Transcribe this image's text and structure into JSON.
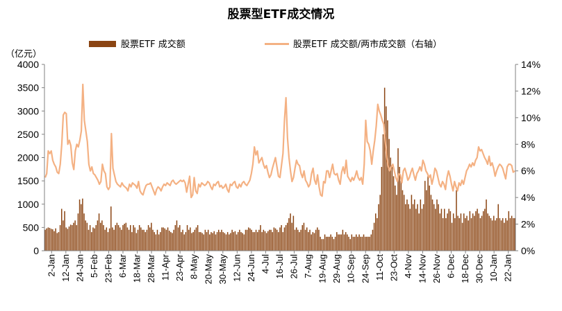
{
  "chart_data": {
    "type": "bar+line",
    "title": "股票型ETF成交情况",
    "y_left_unit": "（亿元）",
    "y_left_ticks": [
      "0",
      "500",
      "1000",
      "1500",
      "2000",
      "2500",
      "3000",
      "3500",
      "4000"
    ],
    "y_left_range": [
      0,
      4000
    ],
    "y_right_ticks": [
      "0%",
      "2%",
      "4%",
      "6%",
      "8%",
      "10%",
      "12%",
      "14%"
    ],
    "y_right_range": [
      0,
      14
    ],
    "x_tick_labels": [
      "2-Jan",
      "12-Jan",
      "24-Jan",
      "5-Feb",
      "23-Feb",
      "6-Mar",
      "18-Mar",
      "28-Mar",
      "11-Apr",
      "23-Apr",
      "8-May",
      "20-May",
      "30-May",
      "12-Jun",
      "24-Jun",
      "4-Jul",
      "16-Jul",
      "26-Jul",
      "7-Aug",
      "19-Aug",
      "29-Aug",
      "10-Sep",
      "24-Sep",
      "11-Oct",
      "23-Oct",
      "4-Nov",
      "14-Nov",
      "26-Nov",
      "6-Dec",
      "18-Dec",
      "30-Dec",
      "10-Jan",
      "22-Jan"
    ],
    "legend": {
      "placement": "top"
    },
    "colors": {
      "bar": "#8B4513",
      "line": "#F4B183",
      "axis": "#808080"
    },
    "series": [
      {
        "name": "股票ETF 成交额",
        "kind": "bar",
        "axis": "left",
        "values": [
          450,
          480,
          500,
          490,
          470,
          460,
          420,
          480,
          380,
          400,
          550,
          900,
          650,
          850,
          500,
          470,
          520,
          560,
          550,
          600,
          650,
          550,
          800,
          1100,
          1000,
          1120,
          800,
          650,
          600,
          450,
          550,
          400,
          500,
          480,
          550,
          650,
          800,
          600,
          650,
          550,
          450,
          500,
          400,
          480,
          950,
          500,
          450,
          550,
          600,
          550,
          500,
          450,
          550,
          580,
          600,
          500,
          450,
          550,
          400,
          550,
          500,
          380,
          450,
          550,
          500,
          450,
          450,
          400,
          450,
          550,
          500,
          600,
          450,
          400,
          350,
          450,
          350,
          400,
          500,
          500,
          480,
          450,
          500,
          430,
          400,
          380,
          450,
          550,
          650,
          500,
          550,
          400,
          450,
          350,
          400,
          550,
          450,
          500,
          380,
          400,
          450,
          500,
          550,
          400,
          400,
          380,
          350,
          450,
          400,
          450,
          350,
          400,
          380,
          420,
          350,
          400,
          450,
          400,
          450,
          400,
          380,
          350,
          400,
          350,
          380,
          450,
          400,
          420,
          350,
          400,
          450,
          400,
          380,
          350,
          450,
          450,
          500,
          480,
          450,
          400,
          400,
          450,
          400,
          450,
          550,
          400,
          450,
          420,
          380,
          420,
          450,
          450,
          400,
          500,
          480,
          450,
          400,
          500,
          550,
          400,
          500,
          550,
          600,
          700,
          800,
          600,
          750,
          450,
          500,
          450,
          400,
          450,
          550,
          600,
          450,
          500,
          400,
          450,
          350,
          400,
          380,
          450,
          500,
          450,
          300,
          250,
          250,
          350,
          300,
          300,
          300,
          350,
          300,
          250,
          300,
          400,
          350,
          350,
          350,
          450,
          350,
          400,
          350,
          300,
          250,
          350,
          300,
          300,
          350,
          300,
          350,
          300,
          300,
          350,
          300,
          300,
          300,
          300,
          350,
          450,
          600,
          800,
          700,
          1000,
          1200,
          1800,
          2500,
          3500,
          3100,
          2800,
          2400,
          2000,
          1800,
          1600,
          1400,
          1200,
          2200,
          1800,
          1500,
          1300,
          1200,
          1000,
          1100,
          1000,
          900,
          1200,
          1000,
          1100,
          900,
          1000,
          800,
          1100,
          900,
          1000,
          1500,
          1300,
          1600,
          1400,
          1200,
          1100,
          1000,
          900,
          1100,
          1000,
          800,
          900,
          700,
          900,
          700,
          800,
          900,
          850,
          600,
          800,
          700,
          1300,
          750,
          700,
          800,
          600,
          800,
          700,
          750,
          650,
          850,
          700,
          800,
          750,
          850,
          900,
          800,
          700,
          750,
          850,
          900,
          1100,
          800,
          750,
          700,
          650,
          750,
          650,
          700,
          1000,
          700,
          650,
          700,
          600,
          700,
          650,
          850,
          700,
          750,
          700,
          700
        ]
      },
      {
        "name": "股票ETF 成交额/两市成交额（右轴）",
        "kind": "line",
        "axis": "right",
        "values": [
          5.5,
          5.8,
          7.5,
          7.3,
          7.5,
          6.8,
          6.5,
          6.3,
          5.9,
          5.8,
          6.5,
          8.0,
          10.2,
          10.4,
          10.3,
          8.0,
          8.3,
          7.9,
          6.6,
          6.1,
          7.5,
          8.0,
          7.8,
          8.3,
          9.0,
          12.5,
          9.8,
          9.0,
          8.2,
          6.5,
          6.0,
          6.3,
          5.8,
          5.7,
          5.5,
          5.3,
          5.0,
          5.2,
          6.5,
          6.0,
          5.8,
          4.8,
          4.6,
          4.8,
          8.8,
          6.2,
          5.7,
          5.2,
          5.0,
          4.9,
          4.8,
          5.1,
          4.9,
          4.8,
          4.7,
          4.5,
          5.0,
          4.8,
          5.1,
          5.0,
          4.9,
          4.7,
          5.2,
          4.5,
          4.3,
          4.2,
          4.6,
          4.9,
          5.0,
          5.0,
          5.1,
          4.8,
          4.5,
          4.2,
          4.6,
          4.8,
          4.7,
          4.5,
          4.8,
          5.0,
          4.9,
          5.1,
          5.0,
          4.9,
          5.2,
          5.3,
          5.1,
          5.0,
          5.1,
          5.2,
          5.3,
          5.2,
          5.3,
          5.1,
          4.4,
          5.0,
          5.6,
          4.0,
          4.2,
          5.5,
          4.5,
          4.3,
          5.0,
          4.8,
          5.1,
          5.0,
          4.9,
          5.0,
          5.2,
          5.1,
          4.8,
          4.6,
          5.0,
          4.9,
          5.1,
          5.2,
          4.8,
          4.9,
          4.7,
          4.8,
          5.0,
          4.6,
          4.4,
          5.0,
          4.9,
          5.1,
          5.2,
          4.8,
          4.7,
          5.0,
          4.8,
          5.1,
          5.2,
          5.0,
          4.9,
          5.1,
          5.3,
          5.8,
          6.5,
          7.8,
          7.2,
          7.5,
          6.6,
          6.8,
          7.0,
          6.5,
          6.2,
          6.4,
          5.9,
          5.5,
          5.7,
          6.2,
          6.6,
          7.0,
          6.3,
          5.6,
          5.5,
          6.4,
          7.3,
          9.8,
          11.5,
          8.5,
          7.0,
          6.0,
          5.2,
          5.5,
          6.2,
          6.8,
          6.5,
          6.4,
          5.8,
          5.5,
          6.0,
          5.3,
          5.1,
          4.8,
          5.0,
          5.8,
          6.2,
          5.3,
          5.0,
          5.7,
          4.8,
          4.2,
          4.1,
          5.2,
          5.1,
          6.0,
          6.0,
          5.5,
          6.0,
          6.5,
          5.8,
          5.7,
          5.8,
          5.3,
          5.0,
          5.9,
          6.3,
          5.8,
          6.8,
          5.6,
          5.4,
          5.2,
          5.5,
          5.3,
          5.6,
          6.0,
          5.5,
          5.3,
          5.5,
          5.0,
          6.5,
          9.8,
          8.2,
          8.0,
          7.5,
          6.5,
          7.5,
          8.3,
          9.4,
          11.0,
          10.5,
          10.2,
          9.8,
          9.5,
          8.2,
          7.0,
          6.3,
          6.0,
          6.3,
          6.5,
          6.0,
          5.5,
          5.2,
          5.8,
          5.7,
          5.1,
          6.0,
          6.2,
          5.8,
          5.3,
          5.5,
          5.9,
          6.2,
          5.7,
          5.3,
          5.8,
          6.0,
          6.3,
          6.0,
          6.8,
          6.5,
          6.0,
          5.8,
          5.5,
          5.7,
          5.0,
          5.5,
          6.2,
          6.0,
          5.5,
          5.0,
          4.8,
          5.2,
          5.0,
          4.6,
          5.5,
          6.0,
          5.6,
          5.0,
          4.5,
          5.2,
          4.8,
          4.5,
          5.1,
          4.9,
          5.3,
          5.0,
          5.5,
          6.0,
          6.2,
          6.5,
          6.3,
          6.6,
          6.4,
          6.8,
          7.0,
          7.8,
          7.5,
          7.6,
          7.3,
          7.0,
          6.8,
          6.5,
          7.1,
          6.4,
          6.6,
          6.2,
          5.6,
          6.0,
          6.3,
          6.5,
          6.4,
          6.2,
          5.8,
          5.4,
          6.3,
          6.5,
          6.5,
          6.4,
          5.9,
          6.0
        ]
      }
    ]
  }
}
